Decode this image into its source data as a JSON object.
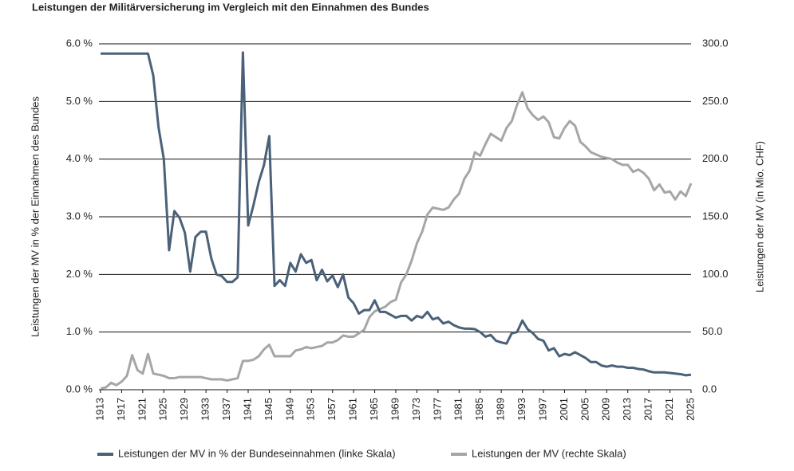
{
  "chart_data": {
    "type": "line",
    "title": "Leistungen der Militärversicherung im Vergleich mit den Einnahmen des Bundes",
    "y_label": "Leistungen der MV in % der Einnahmen des Bundes",
    "y2_label": "Leistungen der MV (in Mio. CHF)",
    "x": [
      1913,
      1914,
      1915,
      1916,
      1917,
      1918,
      1919,
      1920,
      1921,
      1922,
      1923,
      1924,
      1925,
      1926,
      1927,
      1928,
      1929,
      1930,
      1931,
      1932,
      1933,
      1934,
      1935,
      1936,
      1937,
      1938,
      1939,
      1940,
      1941,
      1942,
      1943,
      1944,
      1945,
      1946,
      1947,
      1948,
      1949,
      1950,
      1951,
      1952,
      1953,
      1954,
      1955,
      1956,
      1957,
      1958,
      1959,
      1960,
      1961,
      1962,
      1963,
      1964,
      1965,
      1966,
      1967,
      1968,
      1969,
      1970,
      1971,
      1972,
      1973,
      1974,
      1975,
      1976,
      1977,
      1978,
      1979,
      1980,
      1981,
      1982,
      1983,
      1984,
      1985,
      1986,
      1987,
      1988,
      1989,
      1990,
      1991,
      1992,
      1993,
      1994,
      1995,
      1996,
      1997,
      1998,
      1999,
      2000,
      2001,
      2002,
      2003,
      2004,
      2005,
      2006,
      2007,
      2008,
      2009,
      2010,
      2011,
      2012,
      2013,
      2014,
      2015,
      2016,
      2017,
      2018,
      2019,
      2020,
      2021,
      2022,
      2023,
      2024,
      2025
    ],
    "xlim": [
      1913,
      2025
    ],
    "xticks": [
      1913,
      1917,
      1921,
      1925,
      1929,
      1933,
      1937,
      1941,
      1945,
      1949,
      1953,
      1957,
      1961,
      1965,
      1969,
      1973,
      1977,
      1981,
      1985,
      1989,
      1993,
      1997,
      2001,
      2005,
      2009,
      2013,
      2017,
      2021,
      2025
    ],
    "ylim": [
      0,
      6
    ],
    "yticks": [
      {
        "value": 0,
        "label": "0.0 %"
      },
      {
        "value": 1,
        "label": "1.0 %"
      },
      {
        "value": 2,
        "label": "2.0 %"
      },
      {
        "value": 3,
        "label": "3.0 %"
      },
      {
        "value": 4,
        "label": "4.0 %"
      },
      {
        "value": 5,
        "label": "5.0 %"
      },
      {
        "value": 6,
        "label": "6.0 %"
      }
    ],
    "y2lim": [
      0,
      300
    ],
    "y2ticks": [
      {
        "value": 0,
        "label": "0.0"
      },
      {
        "value": 50,
        "label": "50.0"
      },
      {
        "value": 100,
        "label": "100.0"
      },
      {
        "value": 150,
        "label": "150.0"
      },
      {
        "value": 200,
        "label": "200.0"
      },
      {
        "value": 250,
        "label": "250.0"
      },
      {
        "value": 300,
        "label": "300.0"
      }
    ],
    "grid": true,
    "series": [
      {
        "name": "Leistungen der MV in % der Bundeseinnahmen (linke Skala)",
        "color": "#4a6178",
        "axis": "y",
        "values": [
          5.83,
          5.83,
          5.83,
          5.83,
          5.83,
          5.83,
          5.83,
          5.83,
          5.83,
          5.83,
          5.45,
          4.55,
          4.0,
          2.42,
          3.1,
          2.98,
          2.72,
          2.05,
          2.65,
          2.74,
          2.74,
          2.28,
          2.0,
          1.97,
          1.87,
          1.87,
          1.95,
          5.85,
          2.85,
          3.2,
          3.6,
          3.9,
          4.4,
          1.8,
          1.9,
          1.8,
          2.2,
          2.05,
          2.35,
          2.2,
          2.25,
          1.9,
          2.08,
          1.88,
          1.98,
          1.78,
          2.0,
          1.6,
          1.5,
          1.32,
          1.38,
          1.38,
          1.55,
          1.35,
          1.35,
          1.3,
          1.25,
          1.28,
          1.28,
          1.2,
          1.28,
          1.25,
          1.35,
          1.22,
          1.25,
          1.15,
          1.18,
          1.12,
          1.08,
          1.06,
          1.06,
          1.05,
          1.0,
          0.92,
          0.95,
          0.85,
          0.82,
          0.8,
          0.98,
          1.0,
          1.2,
          1.05,
          0.98,
          0.88,
          0.85,
          0.68,
          0.72,
          0.58,
          0.62,
          0.6,
          0.65,
          0.6,
          0.55,
          0.48,
          0.48,
          0.42,
          0.4,
          0.42,
          0.4,
          0.4,
          0.38,
          0.38,
          0.36,
          0.35,
          0.32,
          0.3,
          0.3,
          0.3,
          0.29,
          0.28,
          0.27,
          0.25,
          0.26
        ]
      },
      {
        "name": "Leistungen der MV (rechte Skala)",
        "color": "#a6a6a6",
        "axis": "y2",
        "values": [
          1,
          2,
          6,
          4,
          7,
          12,
          30,
          17,
          14,
          31,
          14,
          13,
          12,
          10,
          10,
          11,
          11,
          11,
          11,
          11,
          10,
          9,
          9,
          9,
          8,
          9,
          10,
          25,
          25,
          26,
          29,
          35,
          39,
          29,
          29,
          29,
          29,
          34,
          35,
          37,
          36,
          37,
          38,
          41,
          41,
          43,
          47,
          46,
          46,
          49,
          52,
          63,
          68,
          70,
          72,
          76,
          78,
          93,
          100,
          112,
          127,
          137,
          152,
          158,
          157,
          156,
          158,
          165,
          170,
          183,
          190,
          206,
          203,
          213,
          222,
          219,
          216,
          227,
          233,
          247,
          258,
          244,
          238,
          234,
          237,
          232,
          219,
          218,
          227,
          233,
          229,
          215,
          211,
          206,
          204,
          202,
          201,
          200,
          197,
          195,
          195,
          189,
          191,
          188,
          183,
          173,
          178,
          171,
          172,
          165,
          172,
          168,
          179
        ]
      }
    ]
  }
}
